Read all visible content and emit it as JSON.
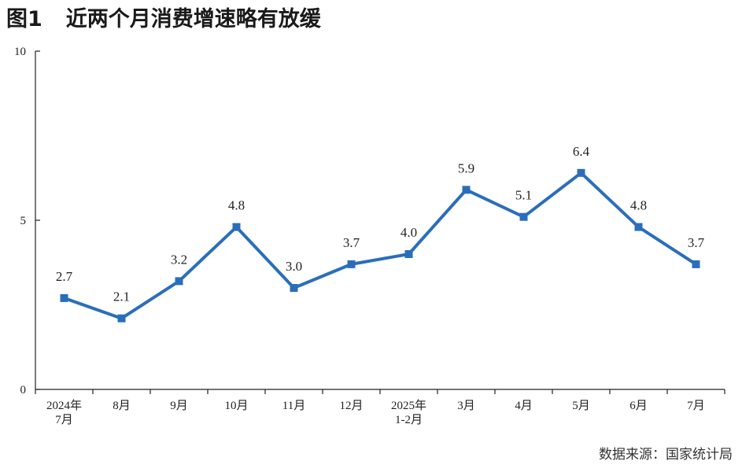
{
  "header": {
    "figure_label": "图1",
    "title": "近两个月消费增速略有放缓"
  },
  "source": "数据来源：国家统计局",
  "chart_data": {
    "type": "line",
    "title": "近两个月消费增速略有放缓",
    "categories": [
      [
        "2024年",
        "7月"
      ],
      [
        "8月"
      ],
      [
        "9月"
      ],
      [
        "10月"
      ],
      [
        "11月"
      ],
      [
        "12月"
      ],
      [
        "2025年",
        "1-2月"
      ],
      [
        "3月"
      ],
      [
        "4月"
      ],
      [
        "5月"
      ],
      [
        "6月"
      ],
      [
        "7月"
      ]
    ],
    "values": [
      2.7,
      2.1,
      3.2,
      4.8,
      3.0,
      3.7,
      4.0,
      5.9,
      5.1,
      6.4,
      4.8,
      3.7
    ],
    "data_labels": [
      "2.7",
      "2.1",
      "3.2",
      "4.8",
      "3.0",
      "3.7",
      "4.0",
      "5.9",
      "5.1",
      "6.4",
      "4.8",
      "3.7"
    ],
    "ylim": [
      0,
      10
    ],
    "yticks": [
      0,
      5,
      10
    ],
    "color": "#2a6ebb",
    "grid": false,
    "legend": "none"
  }
}
